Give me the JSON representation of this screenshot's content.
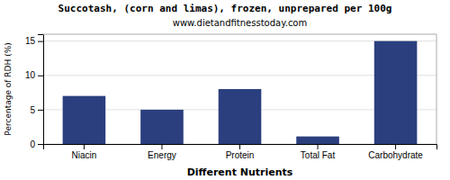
{
  "chart_data": {
    "type": "bar",
    "title": "Succotash, (corn and limas), frozen, unprepared per 100g",
    "subtitle": "www.dietandfitnesstoday.com",
    "xlabel": "Different Nutrients",
    "ylabel": "Percentage of RDH (%)",
    "categories": [
      "Niacin",
      "Energy",
      "Protein",
      "Total Fat",
      "Carbohydrate"
    ],
    "values": [
      7.0,
      5.0,
      8.0,
      1.1,
      15.0
    ],
    "color": "#2b3f7e",
    "ylim": [
      0,
      16
    ],
    "yticks": [
      0,
      5,
      10,
      15
    ],
    "grid": true
  }
}
